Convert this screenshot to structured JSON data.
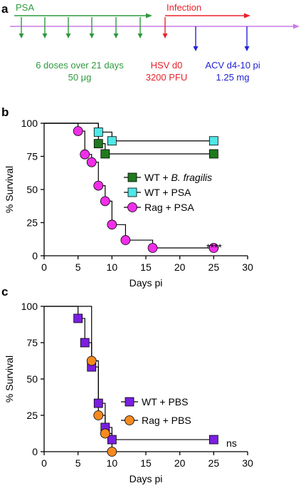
{
  "panel_a": {
    "label": "a",
    "psa_label": "PSA",
    "infection_label": "Infection",
    "dose_line1": "6 doses over 21 days",
    "dose_line2": "50 μg",
    "hsv_line1": "HSV d0",
    "hsv_line2": "3200 PFU",
    "acv_line1": "ACV d4-10 pi",
    "acv_line2": "1.25 mg",
    "colors": {
      "timeline": "#c77be6",
      "psa": "#2e9a3e",
      "infection": "#e8222b",
      "acv": "#2323d6"
    }
  },
  "chart_data": [
    {
      "panel": "b",
      "type": "line",
      "step": true,
      "xlabel": "Days pi",
      "ylabel": "% Survival",
      "xlim": [
        0,
        30
      ],
      "ylim": [
        0,
        100
      ],
      "xticks": [
        0,
        5,
        10,
        15,
        20,
        25,
        30
      ],
      "yticks": [
        0,
        25,
        50,
        75,
        100
      ],
      "annotation": "****",
      "legend_position": "center-right",
      "series": [
        {
          "name": "WT + B. fragilis",
          "legend_prefix": "WT + ",
          "legend_italic": "B. fragilis",
          "color": "#1f7a1f",
          "marker": "square",
          "points": [
            [
              8,
              84.6
            ],
            [
              9,
              76.9
            ],
            [
              25,
              76.9
            ]
          ]
        },
        {
          "name": "WT + PSA",
          "legend_prefix": "WT + PSA",
          "legend_italic": "",
          "color": "#4ee8e8",
          "marker": "square",
          "points": [
            [
              8,
              93.3
            ],
            [
              10,
              86.7
            ],
            [
              25,
              86.7
            ]
          ]
        },
        {
          "name": "Rag + PSA",
          "legend_prefix": "Rag + PSA",
          "legend_italic": "",
          "color": "#f02ee8",
          "marker": "circle",
          "points": [
            [
              5,
              94.1
            ],
            [
              6,
              76.5
            ],
            [
              7,
              70.6
            ],
            [
              8,
              52.9
            ],
            [
              9,
              41.2
            ],
            [
              10,
              23.5
            ],
            [
              12,
              11.8
            ],
            [
              16,
              5.9
            ],
            [
              25,
              5.9
            ]
          ]
        }
      ]
    },
    {
      "panel": "c",
      "type": "line",
      "step": true,
      "xlabel": "Days pi",
      "ylabel": "% Survival",
      "xlim": [
        0,
        30
      ],
      "ylim": [
        0,
        100
      ],
      "xticks": [
        0,
        5,
        10,
        15,
        20,
        25,
        30
      ],
      "yticks": [
        0,
        25,
        50,
        75,
        100
      ],
      "annotation": "ns",
      "legend_position": "center-right",
      "series": [
        {
          "name": "WT + PBS",
          "legend_prefix": "WT + PBS",
          "legend_italic": "",
          "color": "#7b1fe0",
          "marker": "square",
          "points": [
            [
              5,
              91.7
            ],
            [
              6,
              75
            ],
            [
              7,
              58.3
            ],
            [
              8,
              33.3
            ],
            [
              9,
              16.7
            ],
            [
              10,
              8.3
            ],
            [
              25,
              8.3
            ]
          ]
        },
        {
          "name": "Rag + PBS",
          "legend_prefix": "Rag + PBS",
          "legend_italic": "",
          "color": "#f58a1f",
          "marker": "circle",
          "points": [
            [
              7,
              62.5
            ],
            [
              8,
              25
            ],
            [
              9,
              12.5
            ],
            [
              10,
              0
            ]
          ]
        }
      ]
    }
  ]
}
